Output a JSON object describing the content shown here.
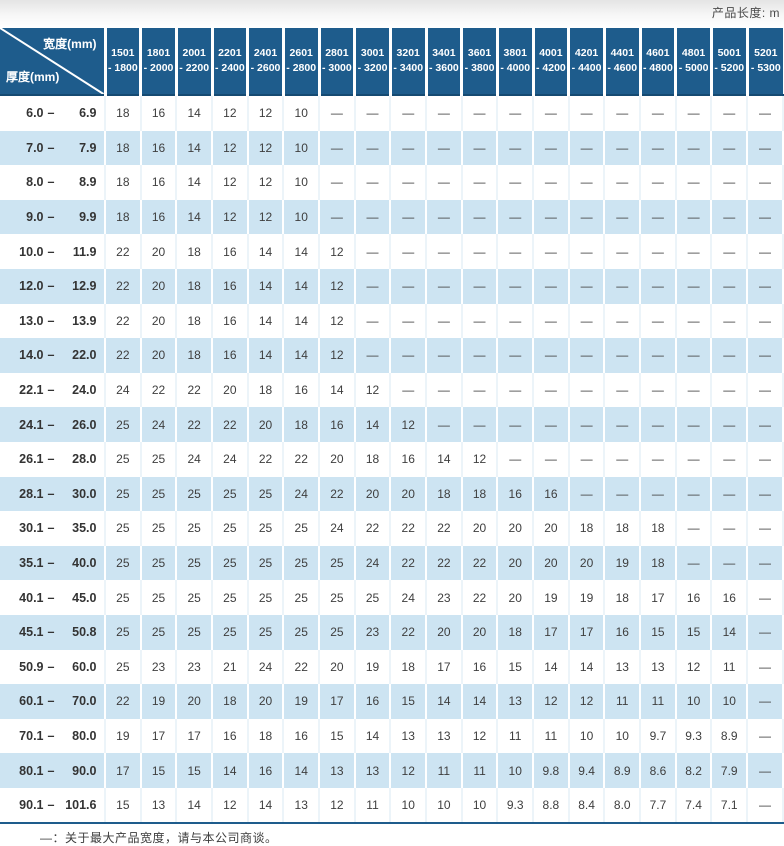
{
  "page": {
    "unit_label": "产品长度: m",
    "footnote": "—：关于最大产品宽度，请与本公司商谈。"
  },
  "colors": {
    "header_blue": "#1e5c8c",
    "row_alt_blue": "#cde4f2"
  },
  "table": {
    "corner": {
      "top_label": "宽度(mm)",
      "bottom_label": "厚度(mm)"
    },
    "range_dash": "–",
    "header_dash": "-",
    "width_columns": [
      {
        "from": "1501",
        "to": "1800"
      },
      {
        "from": "1801",
        "to": "2000"
      },
      {
        "from": "2001",
        "to": "2200"
      },
      {
        "from": "2201",
        "to": "2400"
      },
      {
        "from": "2401",
        "to": "2600"
      },
      {
        "from": "2601",
        "to": "2800"
      },
      {
        "from": "2801",
        "to": "3000"
      },
      {
        "from": "3001",
        "to": "3200"
      },
      {
        "from": "3201",
        "to": "3400"
      },
      {
        "from": "3401",
        "to": "3600"
      },
      {
        "from": "3601",
        "to": "3800"
      },
      {
        "from": "3801",
        "to": "4000"
      },
      {
        "from": "4001",
        "to": "4200"
      },
      {
        "from": "4201",
        "to": "4400"
      },
      {
        "from": "4401",
        "to": "4600"
      },
      {
        "from": "4601",
        "to": "4800"
      },
      {
        "from": "4801",
        "to": "5000"
      },
      {
        "from": "5001",
        "to": "5200"
      },
      {
        "from": "5201",
        "to": "5300"
      }
    ],
    "rows": [
      {
        "from": "6.0",
        "to": "6.9",
        "values": [
          "18",
          "16",
          "14",
          "12",
          "12",
          "10",
          "—",
          "—",
          "—",
          "—",
          "—",
          "—",
          "—",
          "—",
          "—",
          "—",
          "—",
          "—",
          "—"
        ]
      },
      {
        "from": "7.0",
        "to": "7.9",
        "values": [
          "18",
          "16",
          "14",
          "12",
          "12",
          "10",
          "—",
          "—",
          "—",
          "—",
          "—",
          "—",
          "—",
          "—",
          "—",
          "—",
          "—",
          "—",
          "—"
        ]
      },
      {
        "from": "8.0",
        "to": "8.9",
        "values": [
          "18",
          "16",
          "14",
          "12",
          "12",
          "10",
          "—",
          "—",
          "—",
          "—",
          "—",
          "—",
          "—",
          "—",
          "—",
          "—",
          "—",
          "—",
          "—"
        ]
      },
      {
        "from": "9.0",
        "to": "9.9",
        "values": [
          "18",
          "16",
          "14",
          "12",
          "12",
          "10",
          "—",
          "—",
          "—",
          "—",
          "—",
          "—",
          "—",
          "—",
          "—",
          "—",
          "—",
          "—",
          "—"
        ]
      },
      {
        "from": "10.0",
        "to": "11.9",
        "values": [
          "22",
          "20",
          "18",
          "16",
          "14",
          "14",
          "12",
          "—",
          "—",
          "—",
          "—",
          "—",
          "—",
          "—",
          "—",
          "—",
          "—",
          "—",
          "—"
        ]
      },
      {
        "from": "12.0",
        "to": "12.9",
        "values": [
          "22",
          "20",
          "18",
          "16",
          "14",
          "14",
          "12",
          "—",
          "—",
          "—",
          "—",
          "—",
          "—",
          "—",
          "—",
          "—",
          "—",
          "—",
          "—"
        ]
      },
      {
        "from": "13.0",
        "to": "13.9",
        "values": [
          "22",
          "20",
          "18",
          "16",
          "14",
          "14",
          "12",
          "—",
          "—",
          "—",
          "—",
          "—",
          "—",
          "—",
          "—",
          "—",
          "—",
          "—",
          "—"
        ]
      },
      {
        "from": "14.0",
        "to": "22.0",
        "values": [
          "22",
          "20",
          "18",
          "16",
          "14",
          "14",
          "12",
          "—",
          "—",
          "—",
          "—",
          "—",
          "—",
          "—",
          "—",
          "—",
          "—",
          "—",
          "—"
        ]
      },
      {
        "from": "22.1",
        "to": "24.0",
        "values": [
          "24",
          "22",
          "22",
          "20",
          "18",
          "16",
          "14",
          "12",
          "—",
          "—",
          "—",
          "—",
          "—",
          "—",
          "—",
          "—",
          "—",
          "—",
          "—"
        ]
      },
      {
        "from": "24.1",
        "to": "26.0",
        "values": [
          "25",
          "24",
          "22",
          "22",
          "20",
          "18",
          "16",
          "14",
          "12",
          "—",
          "—",
          "—",
          "—",
          "—",
          "—",
          "—",
          "—",
          "—",
          "—"
        ]
      },
      {
        "from": "26.1",
        "to": "28.0",
        "values": [
          "25",
          "25",
          "24",
          "24",
          "22",
          "22",
          "20",
          "18",
          "16",
          "14",
          "12",
          "—",
          "—",
          "—",
          "—",
          "—",
          "—",
          "—",
          "—"
        ]
      },
      {
        "from": "28.1",
        "to": "30.0",
        "values": [
          "25",
          "25",
          "25",
          "25",
          "25",
          "24",
          "22",
          "20",
          "20",
          "18",
          "18",
          "16",
          "16",
          "—",
          "—",
          "—",
          "—",
          "—",
          "—"
        ]
      },
      {
        "from": "30.1",
        "to": "35.0",
        "values": [
          "25",
          "25",
          "25",
          "25",
          "25",
          "25",
          "24",
          "22",
          "22",
          "22",
          "20",
          "20",
          "20",
          "18",
          "18",
          "18",
          "—",
          "—",
          "—"
        ]
      },
      {
        "from": "35.1",
        "to": "40.0",
        "values": [
          "25",
          "25",
          "25",
          "25",
          "25",
          "25",
          "25",
          "24",
          "22",
          "22",
          "22",
          "20",
          "20",
          "20",
          "19",
          "18",
          "—",
          "—",
          "—"
        ]
      },
      {
        "from": "40.1",
        "to": "45.0",
        "values": [
          "25",
          "25",
          "25",
          "25",
          "25",
          "25",
          "25",
          "25",
          "24",
          "23",
          "22",
          "20",
          "19",
          "19",
          "18",
          "17",
          "16",
          "16",
          "—"
        ]
      },
      {
        "from": "45.1",
        "to": "50.8",
        "values": [
          "25",
          "25",
          "25",
          "25",
          "25",
          "25",
          "25",
          "23",
          "22",
          "20",
          "20",
          "18",
          "17",
          "17",
          "16",
          "15",
          "15",
          "14",
          "—"
        ]
      },
      {
        "from": "50.9",
        "to": "60.0",
        "values": [
          "25",
          "23",
          "23",
          "21",
          "24",
          "22",
          "20",
          "19",
          "18",
          "17",
          "16",
          "15",
          "14",
          "14",
          "13",
          "13",
          "12",
          "11",
          "—"
        ]
      },
      {
        "from": "60.1",
        "to": "70.0",
        "values": [
          "22",
          "19",
          "20",
          "18",
          "20",
          "19",
          "17",
          "16",
          "15",
          "14",
          "14",
          "13",
          "12",
          "12",
          "11",
          "11",
          "10",
          "10",
          "—"
        ]
      },
      {
        "from": "70.1",
        "to": "80.0",
        "values": [
          "19",
          "17",
          "17",
          "16",
          "18",
          "16",
          "15",
          "14",
          "13",
          "13",
          "12",
          "11",
          "11",
          "10",
          "10",
          "9.7",
          "9.3",
          "8.9",
          "—"
        ]
      },
      {
        "from": "80.1",
        "to": "90.0",
        "values": [
          "17",
          "15",
          "15",
          "14",
          "16",
          "14",
          "13",
          "13",
          "12",
          "11",
          "11",
          "10",
          "9.8",
          "9.4",
          "8.9",
          "8.6",
          "8.2",
          "7.9",
          "—"
        ]
      },
      {
        "from": "90.1",
        "to": "101.6",
        "values": [
          "15",
          "13",
          "14",
          "12",
          "14",
          "13",
          "12",
          "11",
          "10",
          "10",
          "10",
          "9.3",
          "8.8",
          "8.4",
          "8.0",
          "7.7",
          "7.4",
          "7.1",
          "—"
        ]
      }
    ]
  }
}
